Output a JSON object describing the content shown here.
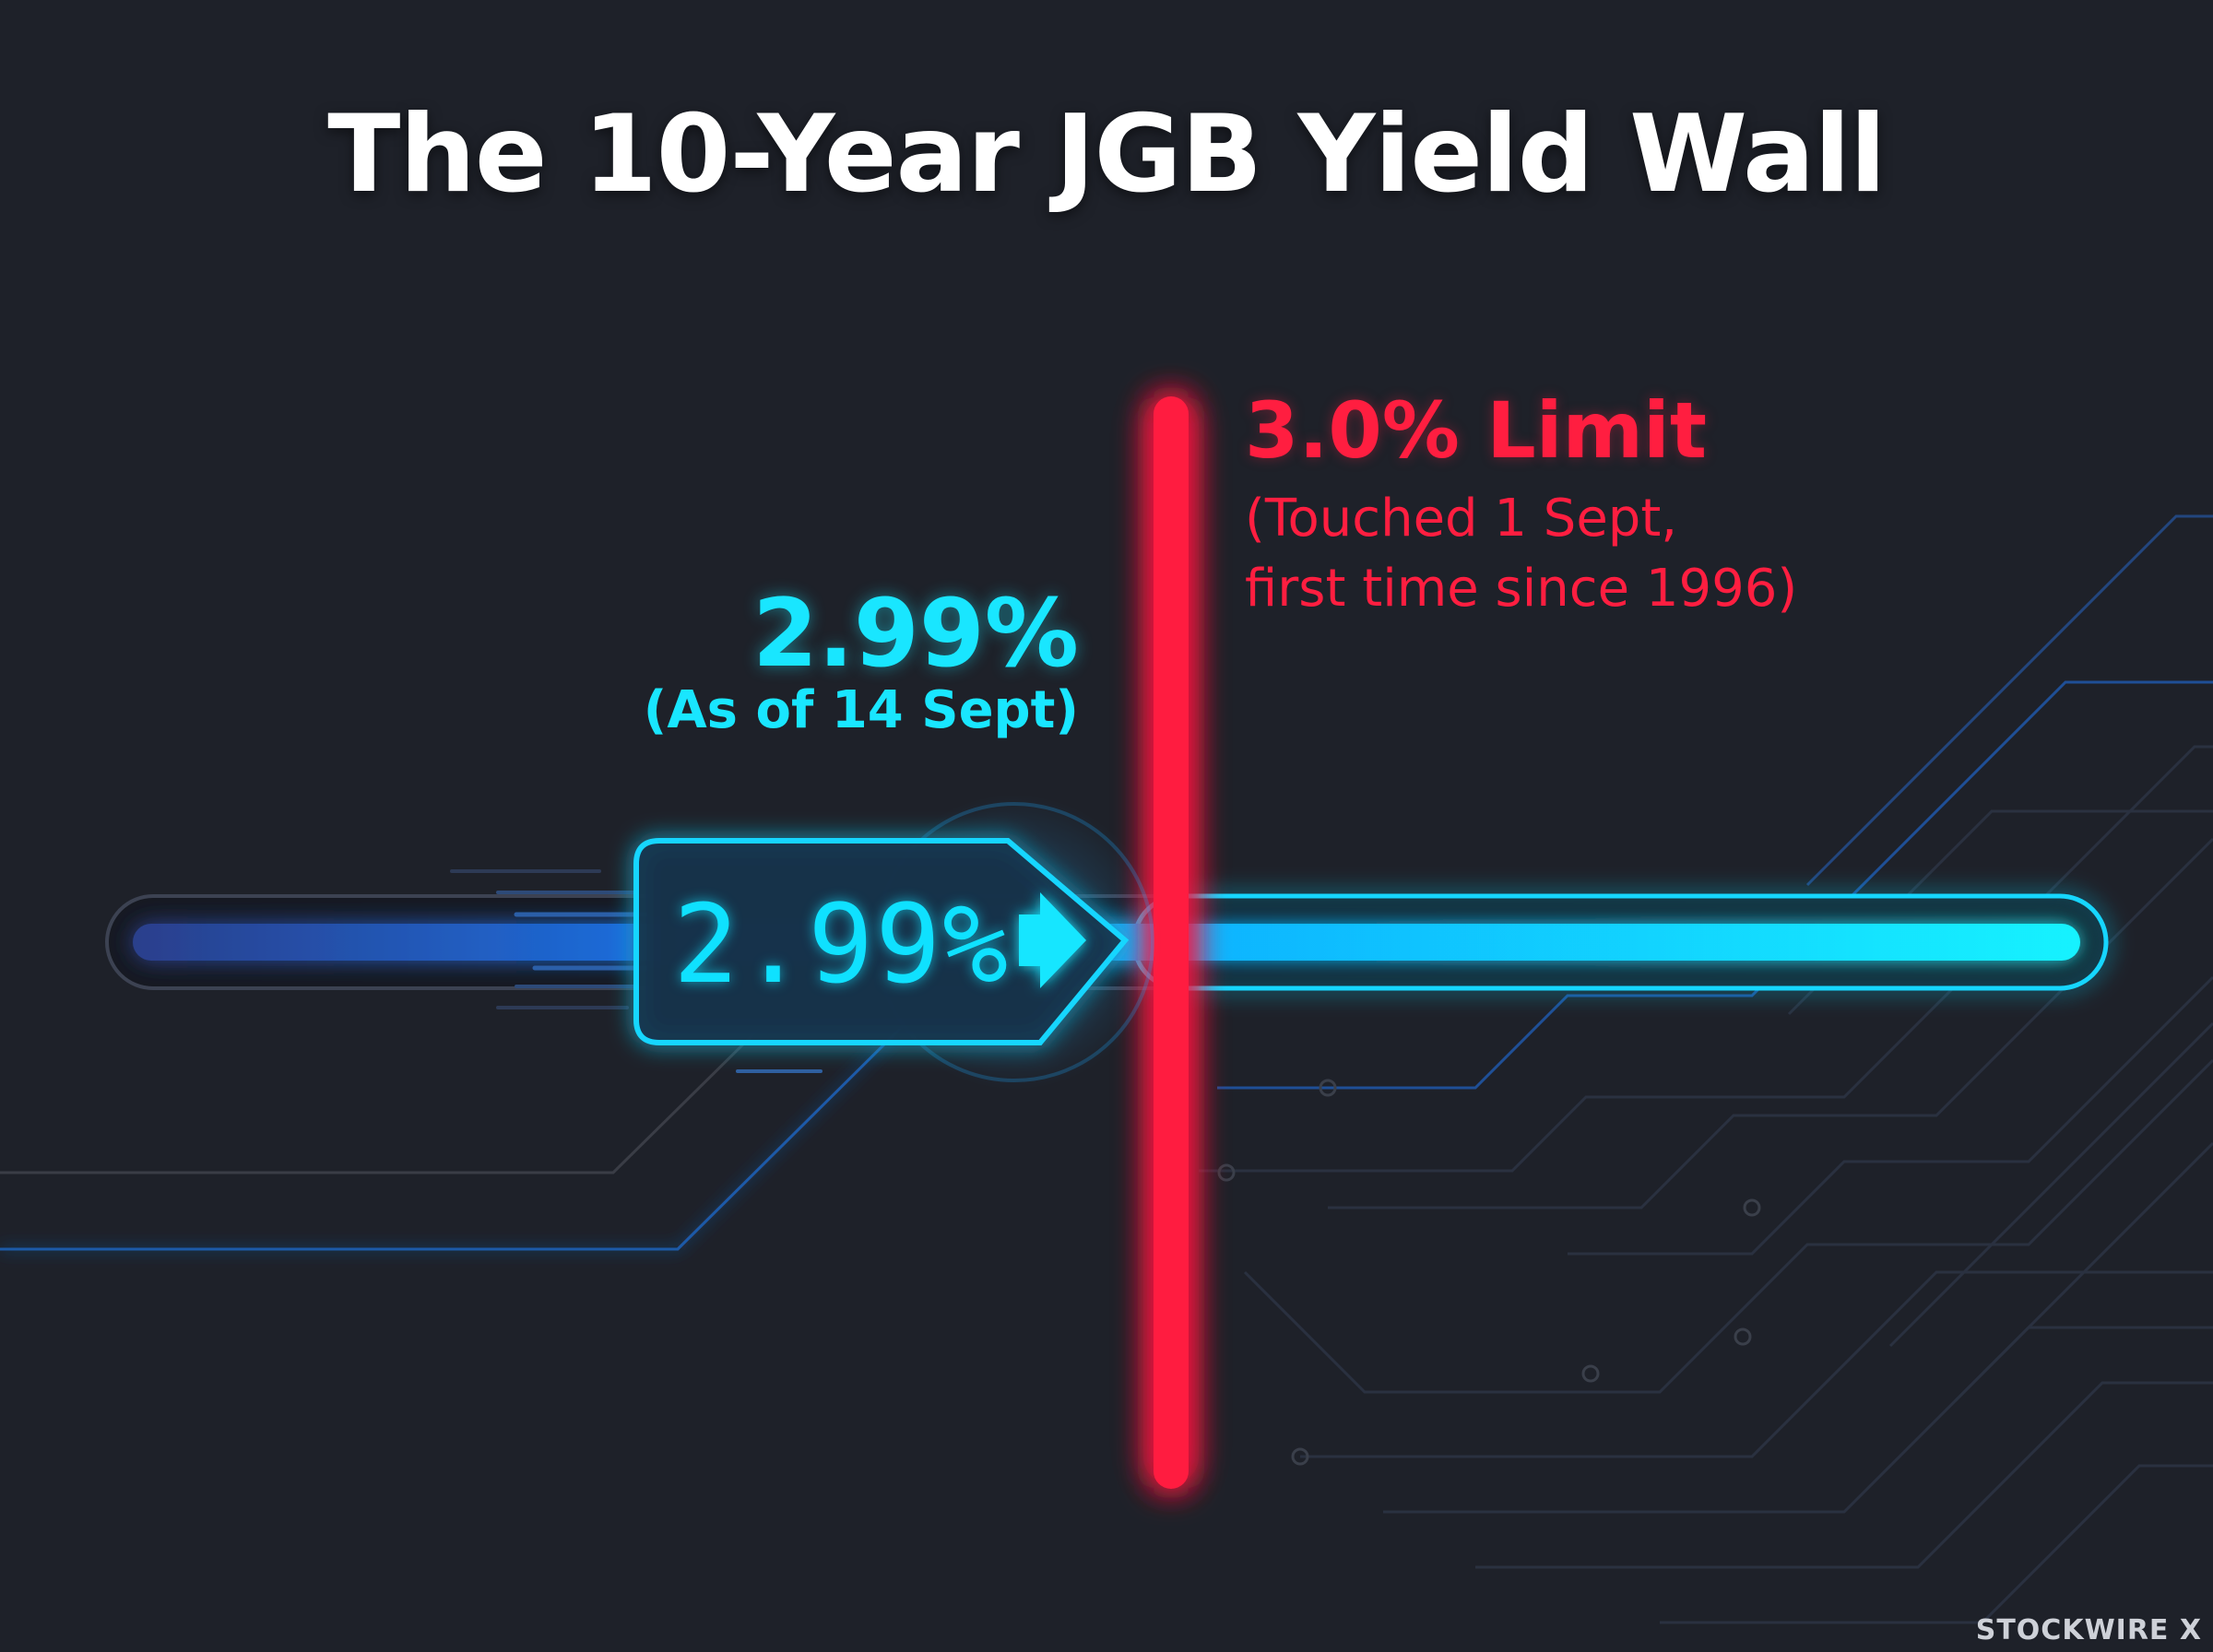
{
  "title": "The 10-Year JGB Yield Wall",
  "limit": {
    "value_label": "3.0% Limit",
    "note_line1": "(Touched 1 Sept,",
    "note_line2": "first time since 1996)",
    "value": 3.0
  },
  "current": {
    "value_label": "2.99%",
    "note": "(As of 14 Sept)",
    "badge_label": "2.99%",
    "value": 2.99
  },
  "watermark": "STOCKWIRE X",
  "colors": {
    "background": "#1e2129",
    "accent_cyan": "#19e6ff",
    "accent_red": "#ff1e40",
    "track_dark": "#2a3f8c"
  },
  "icons": {
    "badge_arrow": "right-arrow-icon"
  }
}
